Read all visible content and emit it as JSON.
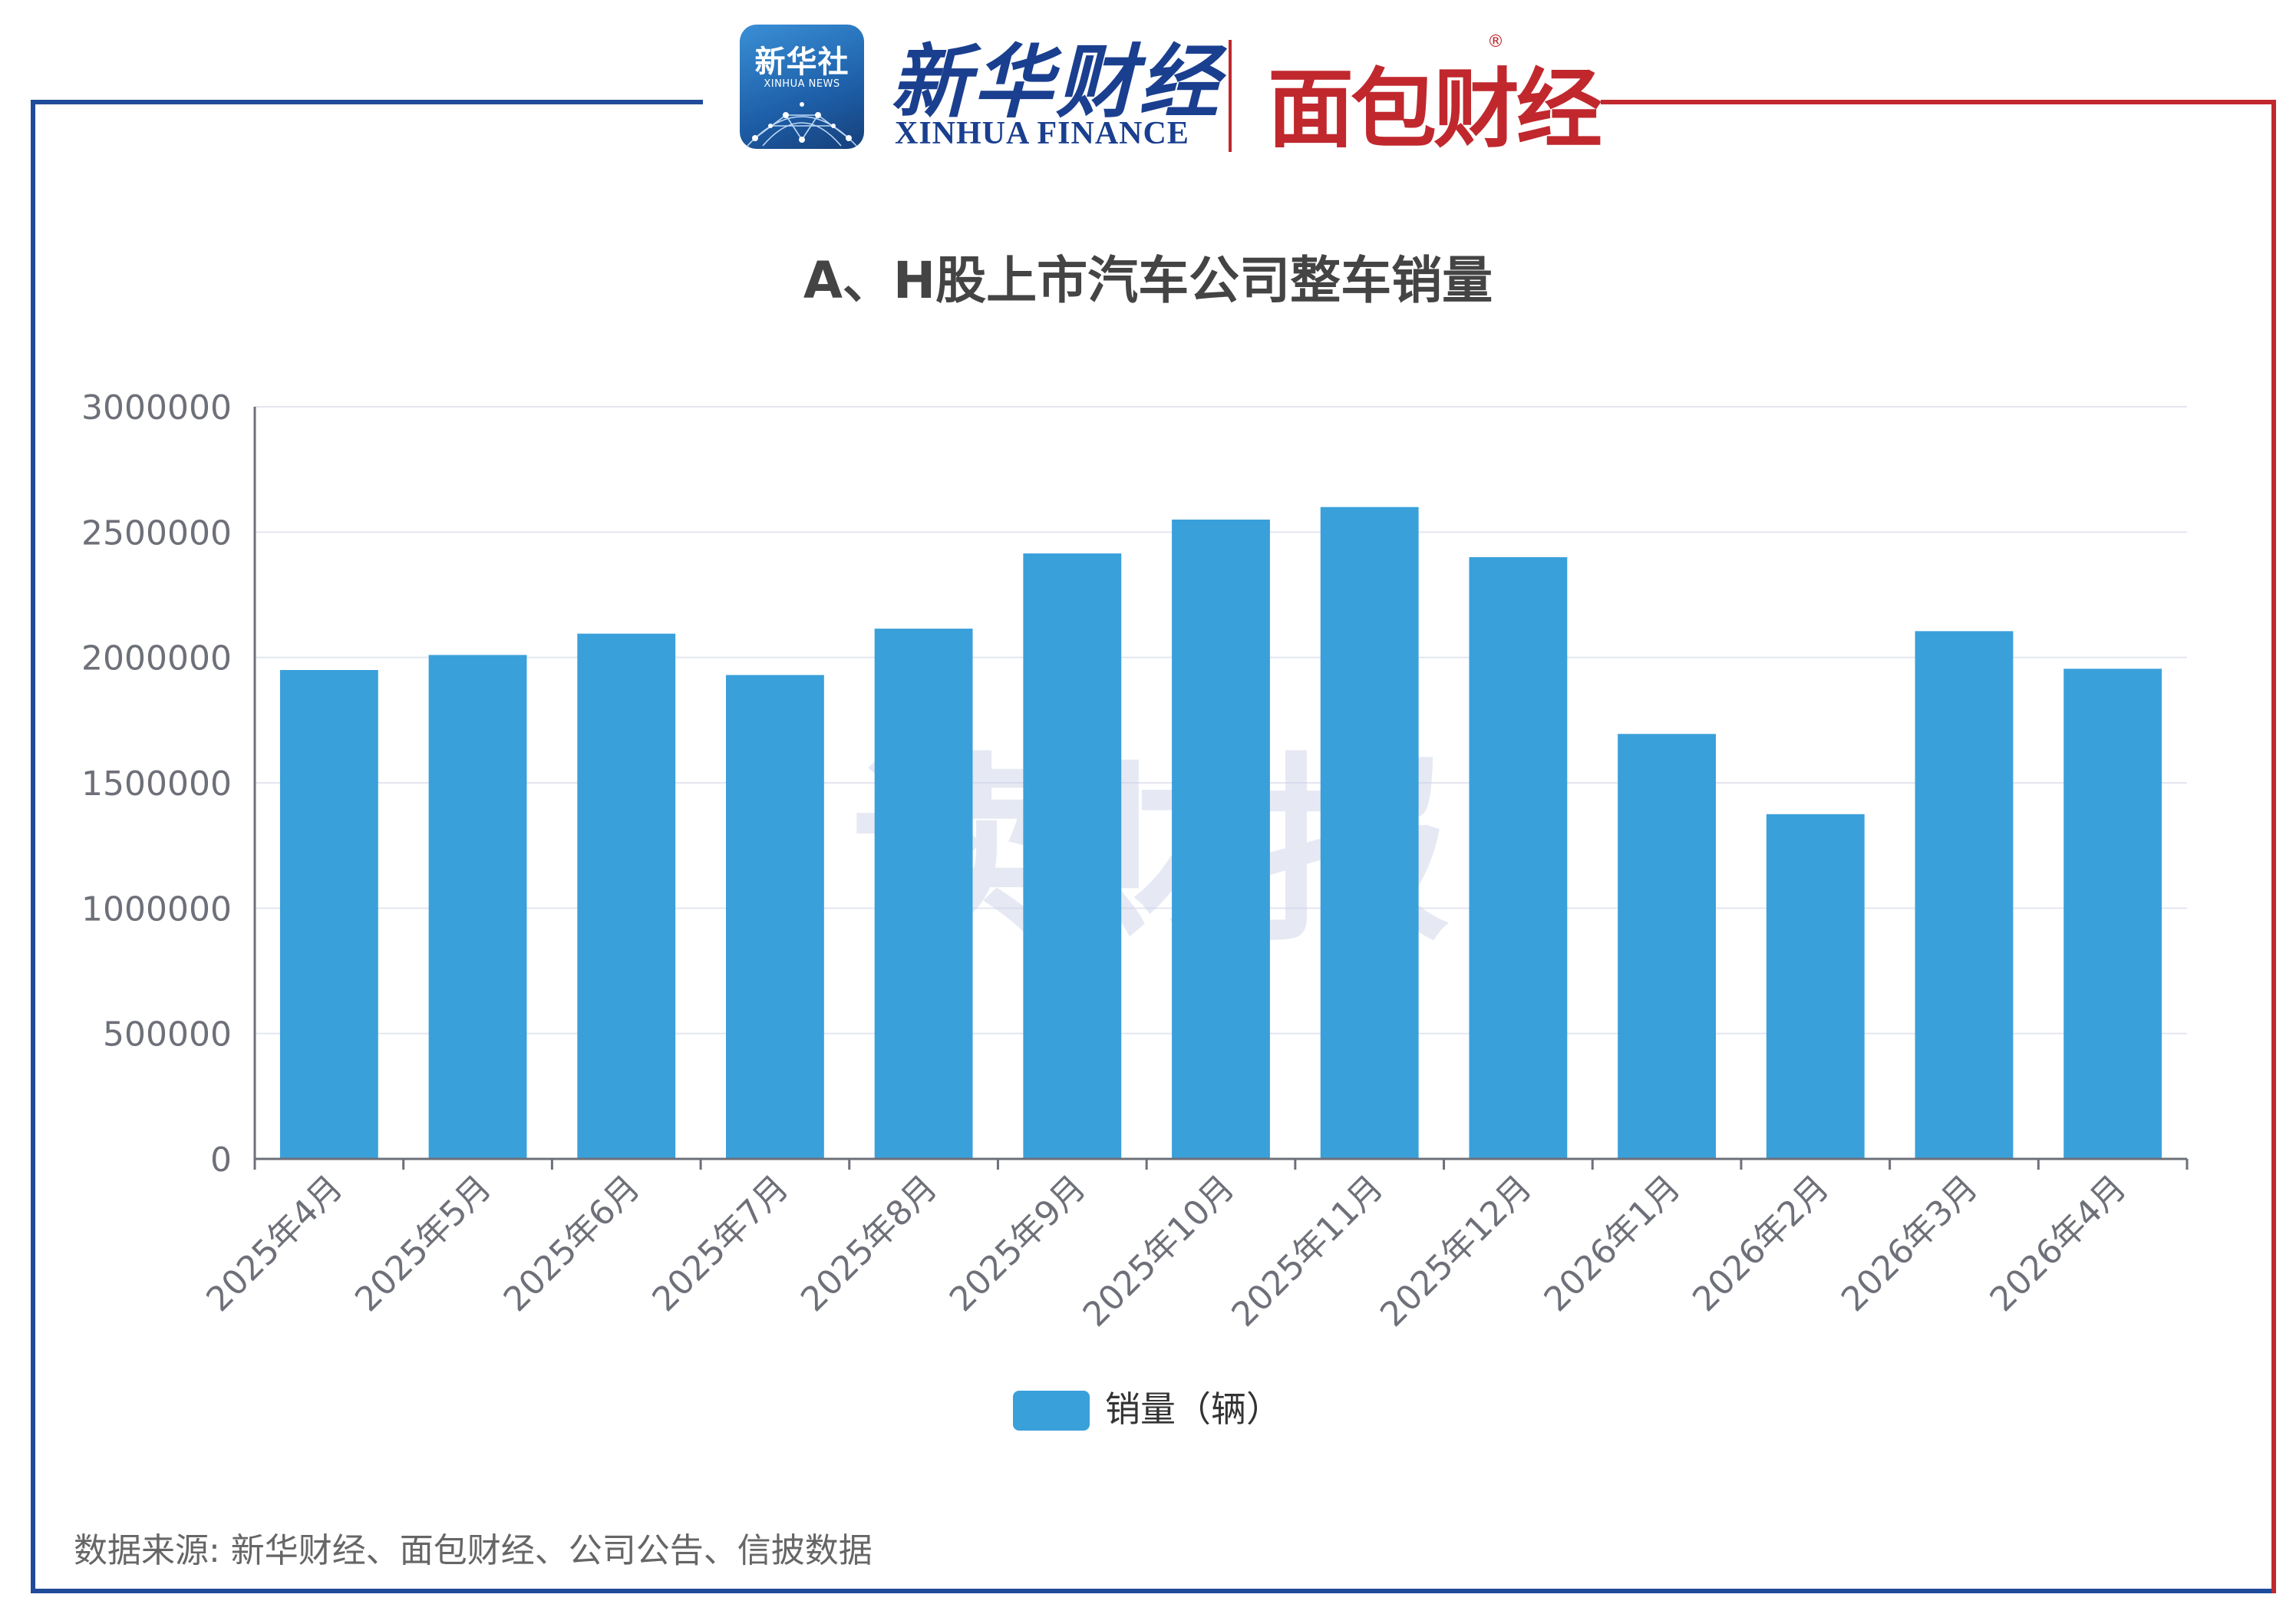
{
  "brand": {
    "xinhua_badge": "新华社",
    "xinhua_badge_en": "XINHUA NEWS",
    "xinhua_finance_cn": "新华财经",
    "xinhua_finance_en": "XINHUA FINANCE",
    "mianbao": "面包财经",
    "reg_mark": "®"
  },
  "watermark": "读财报",
  "colors": {
    "bar": "#3aa0da",
    "frame_left": "#1f4b9a",
    "frame_right": "#c0282e",
    "grid": "#e3e6f0",
    "axis": "#6e7079",
    "tick_text": "#6e7079"
  },
  "chart_data": {
    "type": "bar",
    "title": "A、H股上市汽车公司整车销量",
    "categories": [
      "2025年4月",
      "2025年5月",
      "2025年6月",
      "2025年7月",
      "2025年8月",
      "2025年9月",
      "2025年10月",
      "2025年11月",
      "2025年12月",
      "2026年1月",
      "2026年2月",
      "2026年3月",
      "2026年4月"
    ],
    "series": [
      {
        "name": "销量（辆）",
        "values": [
          1950000,
          2010000,
          2095000,
          1930000,
          2115000,
          2415000,
          2550000,
          2600000,
          2400000,
          1695000,
          1375000,
          2105000,
          1955000
        ]
      }
    ],
    "ylim": [
      0,
      3000000
    ],
    "yticks": [
      "0",
      "500000",
      "1000000",
      "1500000",
      "2000000",
      "2500000",
      "3000000"
    ],
    "legend_position": "bottom",
    "grid": true
  },
  "source": "数据来源: 新华财经、面包财经、公司公告、信披数据"
}
